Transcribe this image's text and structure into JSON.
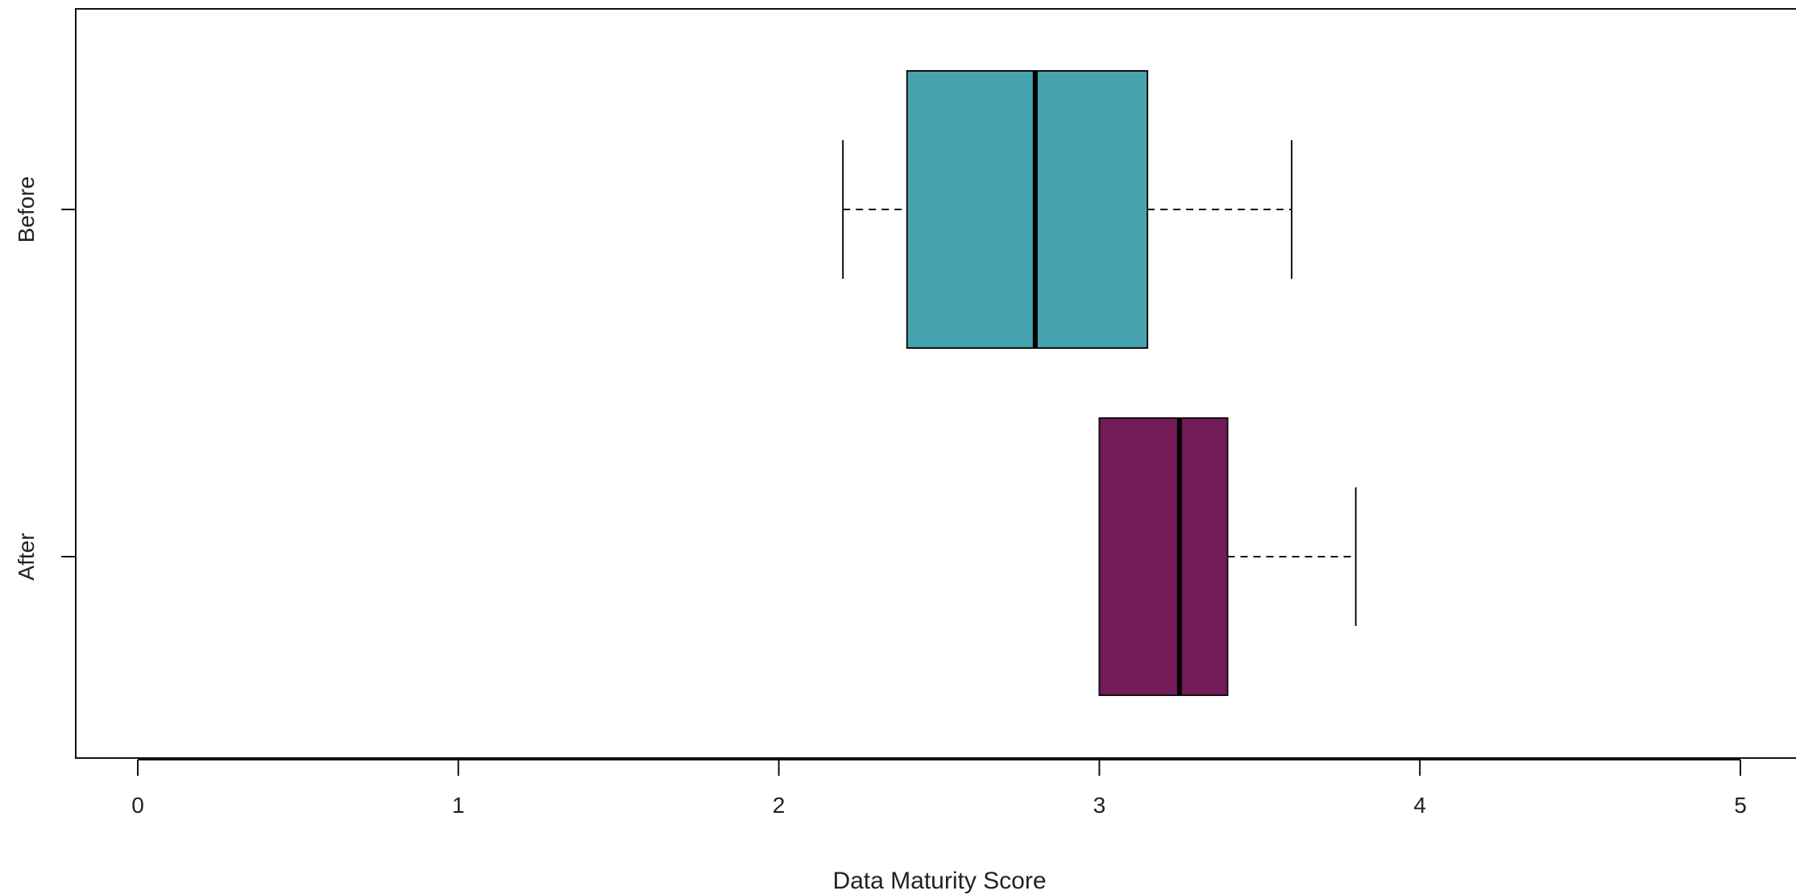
{
  "chart_data": {
    "type": "boxplot",
    "orientation": "horizontal",
    "xlabel": "Data Maturity Score",
    "ylabel": "",
    "xlim": [
      0,
      5
    ],
    "x_ticks": [
      "0",
      "1",
      "2",
      "3",
      "4",
      "5"
    ],
    "grid": false,
    "legend": "none",
    "groups": [
      {
        "label": "Before",
        "color": "#46A3AE",
        "whisker_low": 2.2,
        "q1": 2.4,
        "median": 2.8,
        "q3": 3.15,
        "whisker_high": 3.6
      },
      {
        "label": "After",
        "color": "#741B57",
        "whisker_low": 3.0,
        "q1": 3.0,
        "median": 3.25,
        "q3": 3.4,
        "whisker_high": 3.8
      }
    ]
  }
}
